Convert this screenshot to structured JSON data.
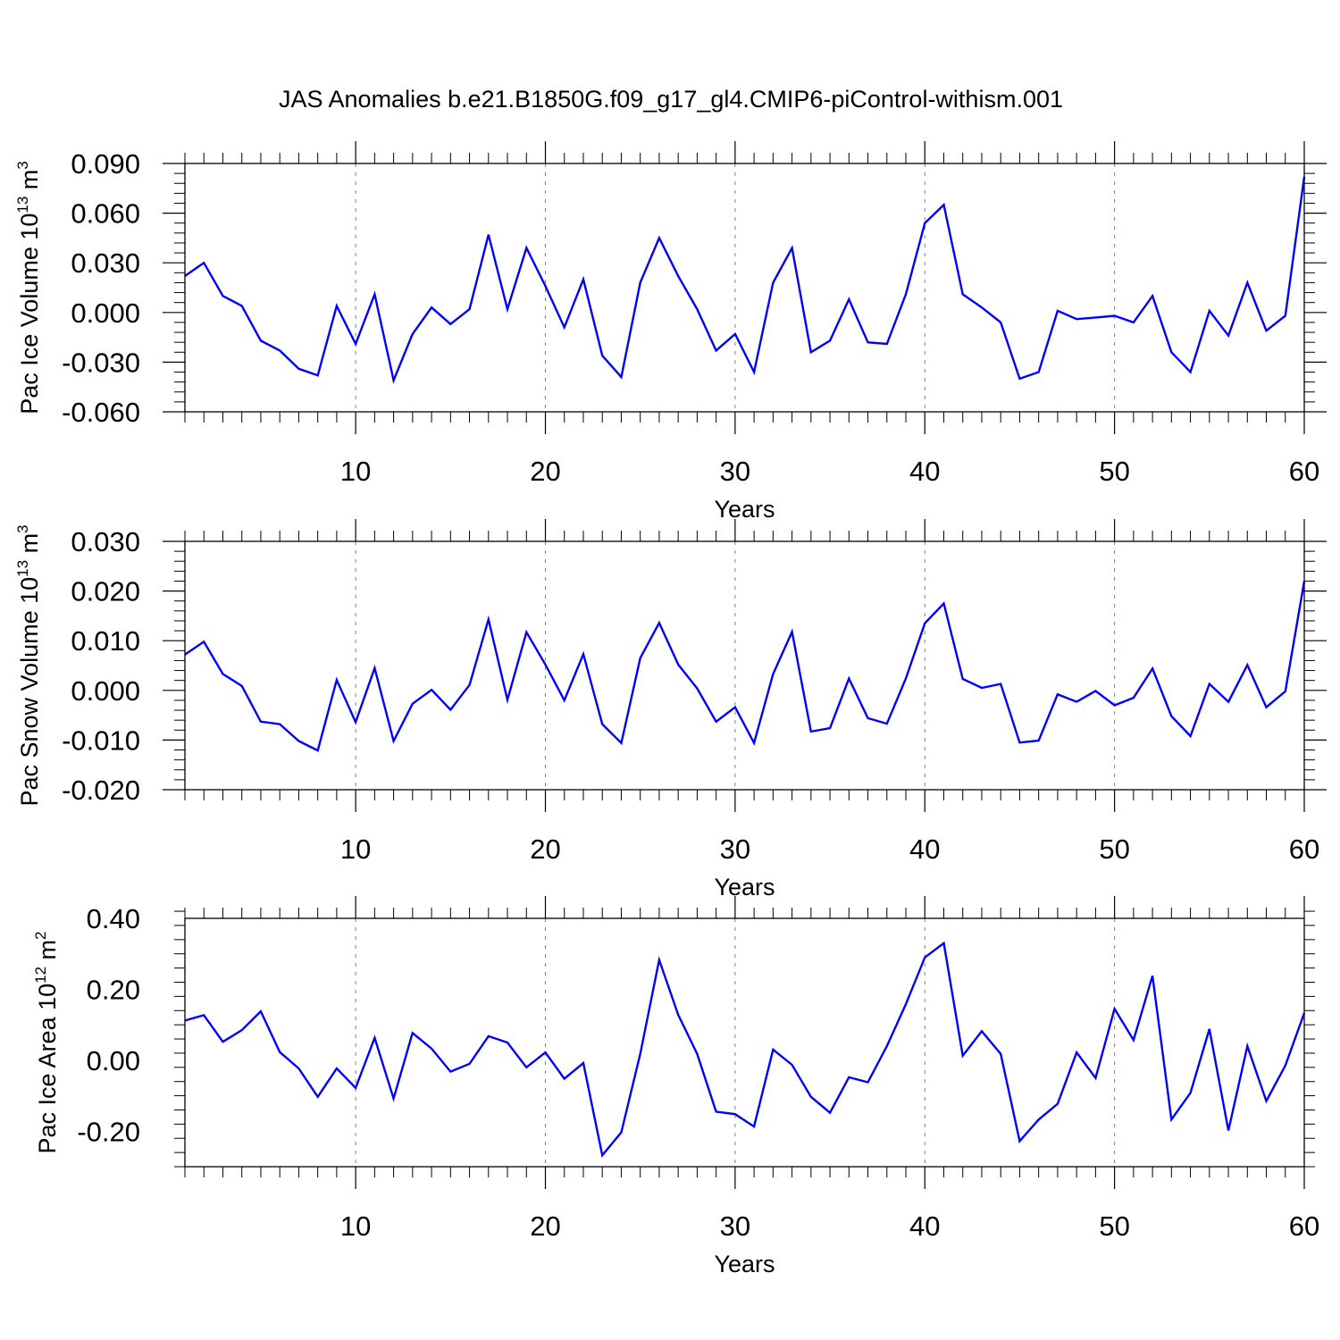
{
  "title": "JAS Anomalies b.e21.B1850G.f09_g17_gl4.CMIP6-piControl-withism.001",
  "colors": {
    "line": "#0000ff",
    "axis": "#000000",
    "grid": "#808080"
  },
  "chart_data": [
    {
      "type": "line",
      "ylabel": {
        "text": "Pac Ice Volume 10",
        "sup": "13",
        "unit": " m",
        "unit_sup": "3"
      },
      "xlabel": "Years",
      "xlim": [
        1,
        60
      ],
      "ylim": [
        -0.06,
        0.09
      ],
      "xticks": [
        10,
        20,
        30,
        40,
        50,
        60
      ],
      "xtick_labels": [
        "10",
        "20",
        "30",
        "40",
        "50",
        "60"
      ],
      "yticks": [
        -0.06,
        -0.03,
        0.0,
        0.03,
        0.06,
        0.09
      ],
      "ytick_labels": [
        "-0.060",
        "-0.030",
        "0.000",
        "0.030",
        "0.060",
        "0.090"
      ],
      "grid": "vertical dashed at major x ticks",
      "series": [
        {
          "name": "Pac Ice Volume",
          "x_start": 1,
          "values": [
            0.022,
            0.03,
            0.01,
            0.004,
            -0.017,
            -0.023,
            -0.034,
            -0.038,
            0.004,
            -0.019,
            0.011,
            -0.041,
            -0.013,
            0.003,
            -0.007,
            0.002,
            0.047,
            0.002,
            0.039,
            0.016,
            -0.009,
            0.02,
            -0.026,
            -0.039,
            0.018,
            0.045,
            0.022,
            0.002,
            -0.023,
            -0.013,
            -0.036,
            0.018,
            0.039,
            -0.024,
            -0.017,
            0.008,
            -0.018,
            -0.019,
            0.011,
            0.054,
            0.065,
            0.011,
            0.003,
            -0.006,
            -0.04,
            -0.036,
            0.001,
            -0.004,
            -0.003,
            -0.002,
            -0.006,
            0.01,
            -0.024,
            -0.036,
            0.001,
            -0.014,
            0.018,
            -0.011,
            -0.002,
            0.082
          ]
        }
      ]
    },
    {
      "type": "line",
      "ylabel": {
        "text": "Pac Snow Volume 10",
        "sup": "13",
        "unit": " m",
        "unit_sup": "3"
      },
      "xlabel": "Years",
      "xlim": [
        1,
        60
      ],
      "ylim": [
        -0.02,
        0.03
      ],
      "xticks": [
        10,
        20,
        30,
        40,
        50,
        60
      ],
      "xtick_labels": [
        "10",
        "20",
        "30",
        "40",
        "50",
        "60"
      ],
      "yticks": [
        -0.02,
        -0.01,
        0.0,
        0.01,
        0.02,
        0.03
      ],
      "ytick_labels": [
        "-0.020",
        "-0.010",
        "0.000",
        "0.010",
        "0.020",
        "0.030"
      ],
      "grid": "vertical dashed at major x ticks",
      "series": [
        {
          "name": "Pac Snow Volume",
          "x_start": 1,
          "values": [
            0.0072,
            0.0098,
            0.0033,
            0.0009,
            -0.0063,
            -0.0068,
            -0.0102,
            -0.0121,
            0.0021,
            -0.0064,
            0.0045,
            -0.0102,
            -0.0027,
            0.0001,
            -0.0039,
            0.0011,
            0.0143,
            -0.0019,
            0.0117,
            0.0052,
            -0.002,
            0.0073,
            -0.0068,
            -0.0106,
            0.0065,
            0.0136,
            0.0052,
            0.0004,
            -0.0063,
            -0.0034,
            -0.0106,
            0.0033,
            0.0118,
            -0.0083,
            -0.0076,
            0.0024,
            -0.0056,
            -0.0067,
            0.0024,
            0.0135,
            0.0175,
            0.0023,
            0.0005,
            0.0013,
            -0.0105,
            -0.0101,
            -0.0008,
            -0.0023,
            -0.0001,
            -0.003,
            -0.0015,
            0.0044,
            -0.0052,
            -0.0092,
            0.0013,
            -0.0023,
            0.0051,
            -0.0034,
            -0.0002,
            0.022
          ]
        }
      ]
    },
    {
      "type": "line",
      "ylabel": {
        "text": "Pac Ice Area 10",
        "sup": "12",
        "unit": " m",
        "unit_sup": "2"
      },
      "xlabel": "Years",
      "xlim": [
        1,
        60
      ],
      "ylim": [
        -0.3,
        0.4
      ],
      "xticks": [
        10,
        20,
        30,
        40,
        50,
        60
      ],
      "xtick_labels": [
        "10",
        "20",
        "30",
        "40",
        "50",
        "60"
      ],
      "yticks": [
        -0.2,
        0.0,
        0.2,
        0.4
      ],
      "ytick_labels": [
        "-0.20",
        "0.00",
        "0.20",
        "0.40"
      ],
      "grid": "vertical dashed at major x ticks",
      "series": [
        {
          "name": "Pac Ice Area",
          "x_start": 1,
          "values": [
            0.112,
            0.127,
            0.052,
            0.085,
            0.138,
            0.023,
            -0.023,
            -0.103,
            -0.023,
            -0.078,
            0.063,
            -0.108,
            0.077,
            0.033,
            -0.032,
            -0.01,
            0.068,
            0.05,
            -0.02,
            0.022,
            -0.052,
            -0.008,
            -0.268,
            -0.203,
            0.018,
            0.283,
            0.128,
            0.018,
            -0.145,
            -0.152,
            -0.187,
            0.03,
            -0.013,
            -0.103,
            -0.148,
            -0.048,
            -0.062,
            0.04,
            0.158,
            0.29,
            0.33,
            0.013,
            0.082,
            0.018,
            -0.228,
            -0.167,
            -0.123,
            0.022,
            -0.05,
            0.145,
            0.057,
            0.238,
            -0.167,
            -0.092,
            0.088,
            -0.198,
            0.04,
            -0.115,
            -0.015,
            0.133
          ]
        }
      ]
    }
  ]
}
